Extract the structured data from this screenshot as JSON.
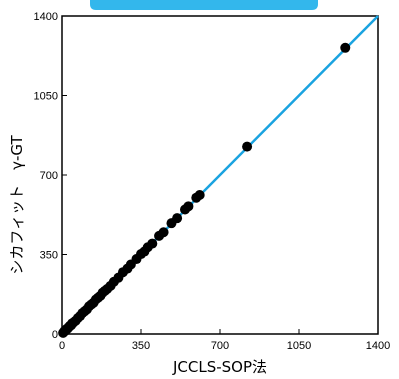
{
  "chart_data": {
    "type": "scatter",
    "title": "",
    "xlabel": "JCCLS-SOP法",
    "ylabel": "シカフィット　γ-GT",
    "xlim": [
      0,
      1400
    ],
    "ylim": [
      0,
      1400
    ],
    "xticks": [
      0,
      350,
      700,
      1050,
      1400
    ],
    "yticks": [
      0,
      350,
      700,
      1050,
      1400
    ],
    "grid": false,
    "colors": {
      "points": "#000000",
      "regression_line": "#1aa3e0",
      "banner": "#33b7ec"
    },
    "regression_line": {
      "slope": 1.0,
      "intercept": 0
    },
    "points": [
      {
        "x": 5,
        "y": 5
      },
      {
        "x": 10,
        "y": 12
      },
      {
        "x": 15,
        "y": 14
      },
      {
        "x": 20,
        "y": 22
      },
      {
        "x": 25,
        "y": 24
      },
      {
        "x": 30,
        "y": 30
      },
      {
        "x": 35,
        "y": 36
      },
      {
        "x": 40,
        "y": 38
      },
      {
        "x": 45,
        "y": 47
      },
      {
        "x": 50,
        "y": 50
      },
      {
        "x": 60,
        "y": 58
      },
      {
        "x": 70,
        "y": 70
      },
      {
        "x": 80,
        "y": 79
      },
      {
        "x": 90,
        "y": 92
      },
      {
        "x": 100,
        "y": 100
      },
      {
        "x": 110,
        "y": 108
      },
      {
        "x": 120,
        "y": 122
      },
      {
        "x": 130,
        "y": 130
      },
      {
        "x": 140,
        "y": 138
      },
      {
        "x": 150,
        "y": 152
      },
      {
        "x": 160,
        "y": 160
      },
      {
        "x": 170,
        "y": 168
      },
      {
        "x": 180,
        "y": 182
      },
      {
        "x": 190,
        "y": 190
      },
      {
        "x": 200,
        "y": 198
      },
      {
        "x": 215,
        "y": 212
      },
      {
        "x": 230,
        "y": 230
      },
      {
        "x": 250,
        "y": 248
      },
      {
        "x": 270,
        "y": 272
      },
      {
        "x": 290,
        "y": 288
      },
      {
        "x": 305,
        "y": 306
      },
      {
        "x": 330,
        "y": 330
      },
      {
        "x": 350,
        "y": 352
      },
      {
        "x": 365,
        "y": 363
      },
      {
        "x": 380,
        "y": 382
      },
      {
        "x": 400,
        "y": 398
      },
      {
        "x": 430,
        "y": 432
      },
      {
        "x": 450,
        "y": 448
      },
      {
        "x": 485,
        "y": 488
      },
      {
        "x": 510,
        "y": 510
      },
      {
        "x": 545,
        "y": 548
      },
      {
        "x": 560,
        "y": 562
      },
      {
        "x": 595,
        "y": 600
      },
      {
        "x": 610,
        "y": 612
      },
      {
        "x": 820,
        "y": 825
      },
      {
        "x": 1255,
        "y": 1260
      }
    ]
  }
}
